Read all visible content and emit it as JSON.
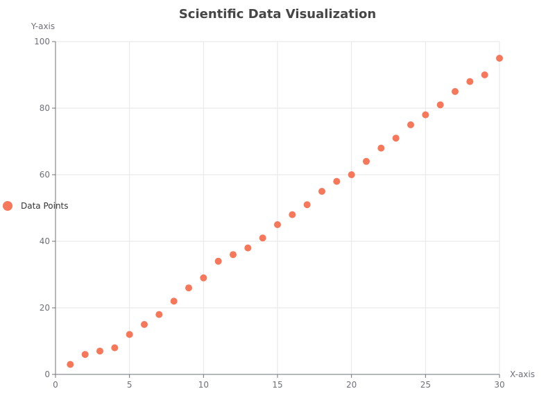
{
  "chart_data": {
    "type": "scatter",
    "title": "Scientific Data Visualization",
    "xlabel": "X-axis",
    "ylabel": "Y-axis",
    "xlim": [
      0,
      30
    ],
    "ylim": [
      0,
      100
    ],
    "xticks": [
      0,
      5,
      10,
      15,
      20,
      25,
      30
    ],
    "yticks": [
      0,
      20,
      40,
      60,
      80,
      100
    ],
    "grid": true,
    "legend_position": "left",
    "colors": {
      "series": "#f7775a",
      "grid": "#e6e6e6",
      "axis": "#6e7079"
    },
    "series": [
      {
        "name": "Data Points",
        "x": [
          1,
          2,
          3,
          4,
          5,
          6,
          7,
          8,
          9,
          10,
          11,
          12,
          13,
          14,
          15,
          16,
          17,
          18,
          19,
          20,
          21,
          22,
          23,
          24,
          25,
          26,
          27,
          28,
          29,
          30
        ],
        "y": [
          3,
          6,
          7,
          8,
          12,
          15,
          18,
          22,
          26,
          29,
          34,
          36,
          38,
          41,
          45,
          48,
          51,
          55,
          58,
          60,
          64,
          68,
          71,
          75,
          78,
          81,
          85,
          88,
          90,
          95
        ]
      }
    ]
  }
}
